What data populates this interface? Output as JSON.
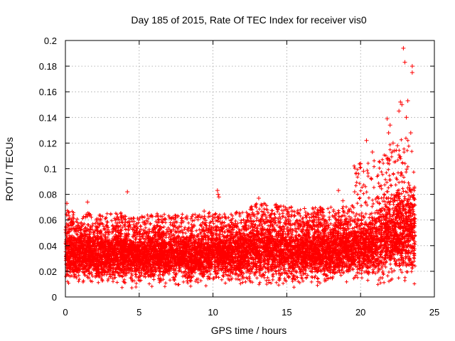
{
  "chart_data": {
    "type": "scatter",
    "title": "Day 185 of 2015, Rate Of TEC Index for receiver vis0",
    "xlabel": "GPS time / hours",
    "ylabel": "ROTI / TECUs",
    "xlim": [
      0,
      25
    ],
    "ylim": [
      0,
      0.2
    ],
    "xticks": [
      0,
      5,
      10,
      15,
      20,
      25
    ],
    "yticks": [
      0,
      0.02,
      0.04,
      0.06,
      0.08,
      0.1,
      0.12,
      0.14,
      0.16,
      0.18,
      0.2
    ],
    "xtick_labels": [
      "0",
      "5",
      "10",
      "15",
      "20",
      "25"
    ],
    "ytick_labels": [
      "0",
      "0.02",
      "0.04",
      "0.06",
      "0.08",
      "0.1",
      "0.12",
      "0.14",
      "0.16",
      "0.18",
      "0.2"
    ],
    "grid": true,
    "marker": "+",
    "color": "#ff0000",
    "series": [
      {
        "name": "vis0",
        "x": [
          0.1,
          0.2,
          0.4,
          1.5,
          1.5,
          3.8,
          4.2,
          5.2,
          6.3,
          6.6,
          7.2,
          9.4,
          10.3,
          10.35,
          10.4,
          12.8,
          13.1,
          13.3,
          14.0,
          14.5,
          15.0,
          15.5,
          16.2,
          17.0,
          18.5,
          18.8,
          19.6,
          20.0,
          20.2,
          20.4,
          20.8,
          21.8,
          21.9,
          22.0,
          22.2,
          22.3,
          22.5,
          22.6,
          22.7,
          22.8,
          22.9,
          23.0,
          23.1,
          23.2,
          23.4,
          23.5,
          23.5
        ],
        "y": [
          0.073,
          0.066,
          0.06,
          0.074,
          0.063,
          0.06,
          0.082,
          0.062,
          0.063,
          0.06,
          0.061,
          0.067,
          0.083,
          0.08,
          0.078,
          0.063,
          0.077,
          0.071,
          0.065,
          0.07,
          0.06,
          0.063,
          0.069,
          0.062,
          0.083,
          0.075,
          0.082,
          0.104,
          0.098,
          0.122,
          0.113,
          0.139,
          0.128,
          0.134,
          0.12,
          0.114,
          0.118,
          0.145,
          0.152,
          0.15,
          0.194,
          0.183,
          0.14,
          0.153,
          0.128,
          0.18,
          0.175
        ]
      }
    ],
    "density_profile": {
      "description": "Dense band of ROTI samples across all hours",
      "hours": [
        0,
        1,
        2,
        3,
        4,
        5,
        6,
        7,
        8,
        9,
        10,
        11,
        12,
        13,
        14,
        15,
        16,
        17,
        18,
        19,
        20,
        21,
        22,
        23,
        23.7
      ],
      "band_low": [
        0.005,
        0.005,
        0.005,
        0.005,
        0.004,
        0.005,
        0.006,
        0.006,
        0.005,
        0.005,
        0.006,
        0.006,
        0.005,
        0.005,
        0.005,
        0.004,
        0.005,
        0.005,
        0.006,
        0.006,
        0.006,
        0.006,
        0.006,
        0.006,
        0.006
      ],
      "band_high": [
        0.053,
        0.052,
        0.05,
        0.05,
        0.052,
        0.048,
        0.05,
        0.05,
        0.05,
        0.05,
        0.052,
        0.05,
        0.052,
        0.058,
        0.058,
        0.056,
        0.054,
        0.055,
        0.055,
        0.056,
        0.06,
        0.062,
        0.075,
        0.08,
        0.082
      ]
    }
  }
}
